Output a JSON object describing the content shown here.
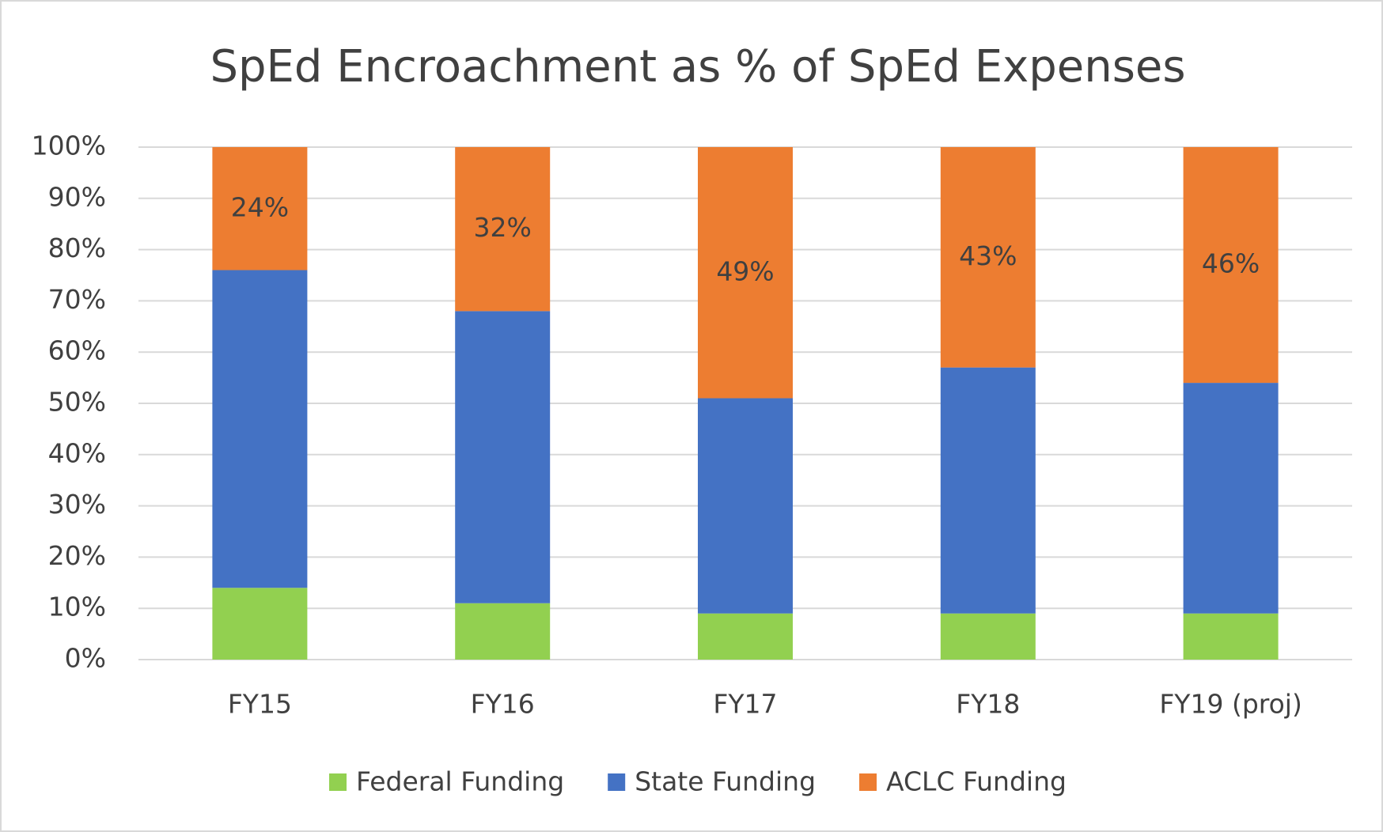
{
  "chart_data": {
    "type": "stacked_bar",
    "title": "SpEd Encroachment as % of SpEd Expenses",
    "categories": [
      "FY15",
      "FY16",
      "FY17",
      "FY18",
      "FY19 (proj)"
    ],
    "series": [
      {
        "name": "Federal Funding",
        "color": "#92d050",
        "values": [
          14,
          11,
          9,
          9,
          9
        ]
      },
      {
        "name": "State Funding",
        "color": "#4472c4",
        "values": [
          62,
          57,
          42,
          48,
          45
        ]
      },
      {
        "name": "ACLC Funding",
        "color": "#ed7d31",
        "values": [
          24,
          32,
          49,
          43,
          46
        ],
        "value_labels": [
          "24%",
          "32%",
          "49%",
          "43%",
          "46%"
        ]
      }
    ],
    "ylim": [
      0,
      100
    ],
    "yticks": [
      {
        "value": 0,
        "label": "0%"
      },
      {
        "value": 10,
        "label": "10%"
      },
      {
        "value": 20,
        "label": "20%"
      },
      {
        "value": 30,
        "label": "30%"
      },
      {
        "value": 40,
        "label": "40%"
      },
      {
        "value": 50,
        "label": "50%"
      },
      {
        "value": 60,
        "label": "60%"
      },
      {
        "value": 70,
        "label": "70%"
      },
      {
        "value": 80,
        "label": "80%"
      },
      {
        "value": 90,
        "label": "90%"
      },
      {
        "value": 100,
        "label": "100%"
      }
    ],
    "grid": true,
    "legend": "bottom"
  }
}
